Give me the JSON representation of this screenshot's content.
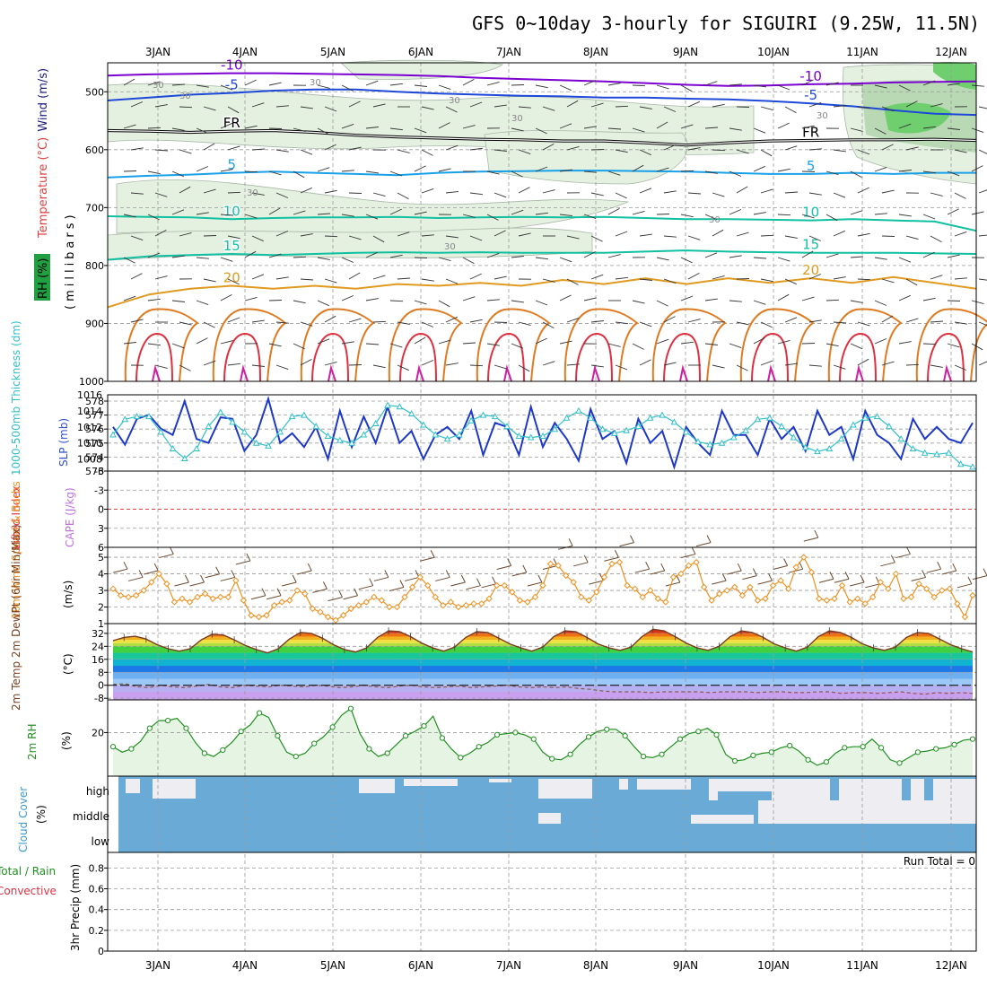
{
  "title": "GFS 0~10day 3-hourly for SIGUIRI (9.25W, 11.5N)",
  "date_labels": [
    "3JAN",
    "4JAN",
    "5JAN",
    "6JAN",
    "7JAN",
    "8JAN",
    "9JAN",
    "10JAN",
    "11JAN",
    "12JAN"
  ],
  "run_total_label": "Run Total = 0",
  "colors": {
    "rh_green": "#5ac85a",
    "temp_violet": "#7b00d0",
    "temp_blue": "#1e48d8",
    "temp_cyan": "#18a0e8",
    "temp_teal": "#10c0a0",
    "temp_orange": "#e09a20",
    "temp_red": "#e03040",
    "slp_line": "#1e38c8",
    "thick_line": "#30c0c8",
    "wind10": "#f09020",
    "rh2m": "#209020",
    "cloud": "#6aaad6"
  },
  "chart_data": [
    {
      "panel": "upper-air",
      "type": "line",
      "yticks": [
        500,
        600,
        700,
        800,
        900,
        1000
      ],
      "ylim": [
        450,
        1000
      ],
      "ylabel_wind": "Wind (m/s)",
      "ylabel_temp": "Temperature (°C)",
      "ylabel_rh": "RH (%)",
      "ylabel_units": "(millibars)",
      "isotherms": [
        {
          "label": "-10",
          "p": [
            472,
            470,
            469,
            468,
            468,
            469,
            470,
            471,
            473,
            476,
            478,
            480,
            482,
            485,
            488,
            490,
            489,
            487,
            486,
            484,
            483,
            482
          ]
        },
        {
          "label": "-5",
          "p": [
            515,
            510,
            505,
            502,
            498,
            496,
            496,
            500,
            503,
            505,
            507,
            508,
            510,
            510,
            512,
            513,
            516,
            520,
            525,
            532,
            538,
            540
          ]
        },
        {
          "label": "FR",
          "p": [
            567,
            568,
            570,
            568,
            567,
            570,
            575,
            578,
            580,
            582,
            583,
            585,
            585,
            588,
            592,
            588,
            585,
            584,
            583,
            583,
            582,
            584
          ]
        },
        {
          "label": "5",
          "p": [
            648,
            645,
            643,
            640,
            638,
            640,
            642,
            644,
            640,
            638,
            637,
            636,
            636,
            637,
            638,
            640,
            642,
            642,
            640,
            642,
            640,
            640
          ]
        },
        {
          "label": "10",
          "p": [
            715,
            716,
            717,
            720,
            718,
            717,
            717,
            716,
            718,
            717,
            716,
            717,
            716,
            718,
            720,
            720,
            721,
            722,
            720,
            722,
            724,
            740
          ]
        },
        {
          "label": "15",
          "p": [
            790,
            784,
            782,
            780,
            782,
            780,
            778,
            777,
            778,
            777,
            778,
            778,
            778,
            776,
            774,
            776,
            777,
            778,
            778,
            778,
            779,
            780
          ]
        },
        {
          "label": "20",
          "p": [
            872,
            850,
            840,
            835,
            840,
            835,
            840,
            832,
            835,
            830,
            835,
            825,
            832,
            822,
            832,
            822,
            830,
            822,
            830,
            820,
            830,
            840
          ]
        }
      ],
      "contour_labels": [
        "30",
        "30",
        "30",
        "30",
        "30",
        "30",
        "30",
        "30",
        "30"
      ]
    },
    {
      "panel": "thickness-slp",
      "type": "line",
      "ylabel_left": "1000-500mb Thickness (dm)",
      "ylabel_right": "SLP (mb)",
      "yticks_left": [
        573,
        574,
        575,
        576,
        577,
        578
      ],
      "yticks_right": [
        1008,
        1010,
        1012,
        1014,
        1016
      ],
      "slp": [
        1012.0,
        1009.8,
        1013.0,
        1013.5,
        1011.8,
        1011.0,
        1015.2,
        1010.5,
        1010.0,
        1013.2,
        1013.0,
        1009.0,
        1011.0,
        1015.5,
        1010.0,
        1011.2,
        1009.5,
        1012.0,
        1008.0,
        1014.0,
        1009.5,
        1013.3,
        1010.0,
        1014.5,
        1010.0,
        1011.5,
        1008.0,
        1011.0,
        1012.0,
        1010.5,
        1014.0,
        1008.5,
        1012.5,
        1012.0,
        1008.5,
        1014.5,
        1009.5,
        1012.5,
        1010.5,
        1007.8,
        1014.2,
        1010.5,
        1011.5,
        1007.5,
        1013.0,
        1010.0,
        1011.5,
        1007.0,
        1012.0,
        1010.0,
        1008.5,
        1014.0,
        1011.0,
        1011.0,
        1008.5,
        1013.0,
        1010.5,
        1012.0,
        1009.0,
        1014.0,
        1011.0,
        1012.0,
        1008.0,
        1014.0,
        1011.0,
        1010.0,
        1008.0,
        1013.0,
        1010.5,
        1012.0,
        1010.5,
        1010.0,
        1012.5
      ],
      "thickness": [
        575.6,
        576.7,
        576.9,
        576.9,
        575.8,
        574.6,
        573.9,
        574.6,
        576.2,
        577.2,
        576.5,
        575.8,
        575.0,
        574.8,
        575.8,
        576.9,
        577.0,
        576.2,
        575.5,
        575.2,
        575.0,
        575.6,
        576.4,
        577.7,
        577.6,
        577.1,
        576.3,
        575.6,
        575.3,
        575.6,
        576.6,
        577.0,
        576.9,
        576.2,
        575.5,
        575.4,
        575.5,
        576.0,
        576.8,
        577.3,
        576.8,
        576.0,
        575.7,
        575.9,
        576.2,
        576.8,
        577.0,
        576.5,
        575.8,
        575.1,
        574.9,
        575.0,
        575.4,
        575.9,
        576.7,
        576.8,
        576.2,
        575.4,
        574.7,
        574.4,
        574.6,
        575.3,
        576.3,
        576.8,
        576.9,
        576.2,
        575.3,
        574.6,
        574.3,
        574.2,
        574.3,
        573.5,
        573.3
      ]
    },
    {
      "panel": "stability",
      "type": "line",
      "ylabel_left": "Lifted Index",
      "ylabel_right": "CAPE (J/kg)",
      "yticks": [
        -6,
        -3,
        0,
        3,
        6
      ],
      "lifted_index_zero": 0
    },
    {
      "panel": "wind10m",
      "type": "line",
      "ylabel_left": "10m Wind Speed & Barbs",
      "ylabel_units": "(m/s)",
      "yticks": [
        1,
        2,
        3,
        4,
        5
      ],
      "speed": [
        3.1,
        2.7,
        2.6,
        2.7,
        3.0,
        3.5,
        4.0,
        3.4,
        2.3,
        2.5,
        2.3,
        2.6,
        2.8,
        2.5,
        2.6,
        2.6,
        3.6,
        2.4,
        1.5,
        1.4,
        1.5,
        2.1,
        2.3,
        2.4,
        3.0,
        2.8,
        1.9,
        1.7,
        1.4,
        1.2,
        1.5,
        1.9,
        2.1,
        2.3,
        2.6,
        2.4,
        2.0,
        2.0,
        2.6,
        3.2,
        3.8,
        3.3,
        2.6,
        2.1,
        2.3,
        2.0,
        2.1,
        2.2,
        2.2,
        2.5,
        3.3,
        3.3,
        2.9,
        2.4,
        2.3,
        2.6,
        3.3,
        4.6,
        4.5,
        3.9,
        3.5,
        2.6,
        2.4,
        2.9,
        3.8,
        4.6,
        4.7,
        3.3,
        3.1,
        2.6,
        3.0,
        2.5,
        2.3,
        3.8,
        4.0,
        4.5,
        4.7,
        3.2,
        2.4,
        2.8,
        3.0,
        3.2,
        2.7,
        3.2,
        2.4,
        2.5,
        3.3,
        3.6,
        3.1,
        4.4,
        5.0,
        4.1,
        2.5,
        2.4,
        2.5,
        3.3,
        2.3,
        2.5,
        2.2,
        2.6,
        3.5,
        3.1,
        4.0,
        2.5,
        2.6,
        3.4,
        3.1,
        2.6,
        3.0,
        3.1,
        2.2,
        1.4,
        2.7
      ]
    },
    {
      "panel": "temperature2m",
      "type": "area",
      "ylabel_left": "2m Temp 2m DewPt (6hr Min/Max)",
      "ylabel_units": "(°C)",
      "yticks": [
        -8,
        0,
        8,
        16,
        24,
        32
      ],
      "temp": [
        27.5,
        29.5,
        30.2,
        28.5,
        25.0,
        22.5,
        21.0,
        22.5,
        28.0,
        31.5,
        31.0,
        28.0,
        24.5,
        22.0,
        20.0,
        22.5,
        28.5,
        32.5,
        32.0,
        29.0,
        25.0,
        22.0,
        20.5,
        23.0,
        29.5,
        33.5,
        33.0,
        30.0,
        26.0,
        23.0,
        21.0,
        23.5,
        29.5,
        33.0,
        32.5,
        29.0,
        25.5,
        23.0,
        21.0,
        23.5,
        30.0,
        33.5,
        33.0,
        29.5,
        25.5,
        23.0,
        21.5,
        23.5,
        30.0,
        34.5,
        33.5,
        30.0,
        26.0,
        23.0,
        21.5,
        24.0,
        30.0,
        33.5,
        32.5,
        29.5,
        25.5,
        23.0,
        21.0,
        23.5,
        30.0,
        33.5,
        32.5,
        29.5,
        25.5,
        23.0,
        21.5,
        23.5,
        29.5,
        32.5,
        32.0,
        28.5,
        25.0,
        22.5,
        20.5
      ],
      "dewpt": [
        0.5,
        1.0,
        -1.0,
        -1.5,
        0.0,
        -1.0,
        -1.5,
        -0.5,
        0.5,
        -1.0,
        -1.5,
        0.0,
        -0.5,
        -1.0,
        0.0,
        -0.5,
        -1.0,
        0.0,
        -0.5,
        -1.5,
        -1.0,
        0.0,
        -1.0,
        -1.5,
        -0.5,
        0.0,
        -1.0,
        -1.5,
        -1.0,
        -0.5,
        -1.5,
        -1.0,
        -0.5,
        0.0,
        -1.0,
        -1.5,
        -1.0,
        -1.5,
        -1.0,
        -2.0,
        -2.5,
        -3.5,
        -4.0,
        -4.0,
        -4.0,
        -4.5,
        -4.0,
        -4.0,
        -4.0,
        -4.0,
        -4.5,
        -4.0,
        -4.0,
        -4.0,
        -4.5,
        -4.0,
        -4.0,
        -4.5,
        -4.5,
        -4.0,
        -4.0,
        -5.0,
        -4.5,
        -4.5,
        -5.0,
        -4.5,
        -4.0,
        -5.0,
        -5.5,
        -4.5,
        -5.0,
        -4.5,
        -5.0
      ]
    },
    {
      "panel": "rh2m",
      "type": "area",
      "ylabel_left": "2m RH",
      "ylabel_units": "(%)",
      "yticks": [
        20
      ],
      "rh": [
        13.5,
        11.0,
        12.5,
        16.0,
        22.0,
        25.5,
        25.5,
        26.5,
        22.0,
        15.5,
        10.5,
        9.0,
        12.0,
        15.5,
        20.5,
        23.5,
        29.0,
        27.0,
        18.5,
        11.0,
        9.0,
        10.5,
        15.0,
        18.0,
        22.5,
        28.0,
        31.0,
        19.5,
        12.5,
        9.0,
        10.5,
        14.5,
        18.5,
        20.5,
        23.0,
        27.5,
        17.5,
        12.5,
        8.5,
        10.5,
        13.5,
        15.5,
        19.0,
        19.5,
        20.0,
        19.0,
        17.0,
        11.0,
        8.0,
        7.5,
        10.0,
        14.5,
        18.0,
        20.5,
        21.5,
        21.5,
        18.5,
        13.5,
        9.0,
        8.5,
        10.0,
        13.5,
        17.0,
        19.5,
        20.5,
        22.0,
        19.0,
        10.0,
        7.0,
        7.5,
        9.5,
        10.5,
        11.0,
        13.0,
        14.0,
        11.5,
        7.5,
        5.0,
        6.5,
        10.5,
        13.0,
        13.5,
        13.5,
        17.0,
        13.0,
        7.5,
        6.0,
        8.5,
        11.0,
        11.5,
        12.5,
        13.0,
        14.5,
        16.5,
        17.0
      ]
    },
    {
      "panel": "cloud",
      "type": "heatmap",
      "ylabel_left": "Cloud Cover",
      "ylabel_units": "(%)",
      "levels": [
        "high",
        "middle",
        "low"
      ]
    },
    {
      "panel": "precip",
      "type": "bar",
      "ylabel_left": "Total / Rain",
      "ylabel_left2": "Convective",
      "ylabel_units": "3hr Precip (mm)",
      "yticks": [
        0,
        0.2,
        0.4,
        0.6,
        0.8
      ]
    }
  ]
}
